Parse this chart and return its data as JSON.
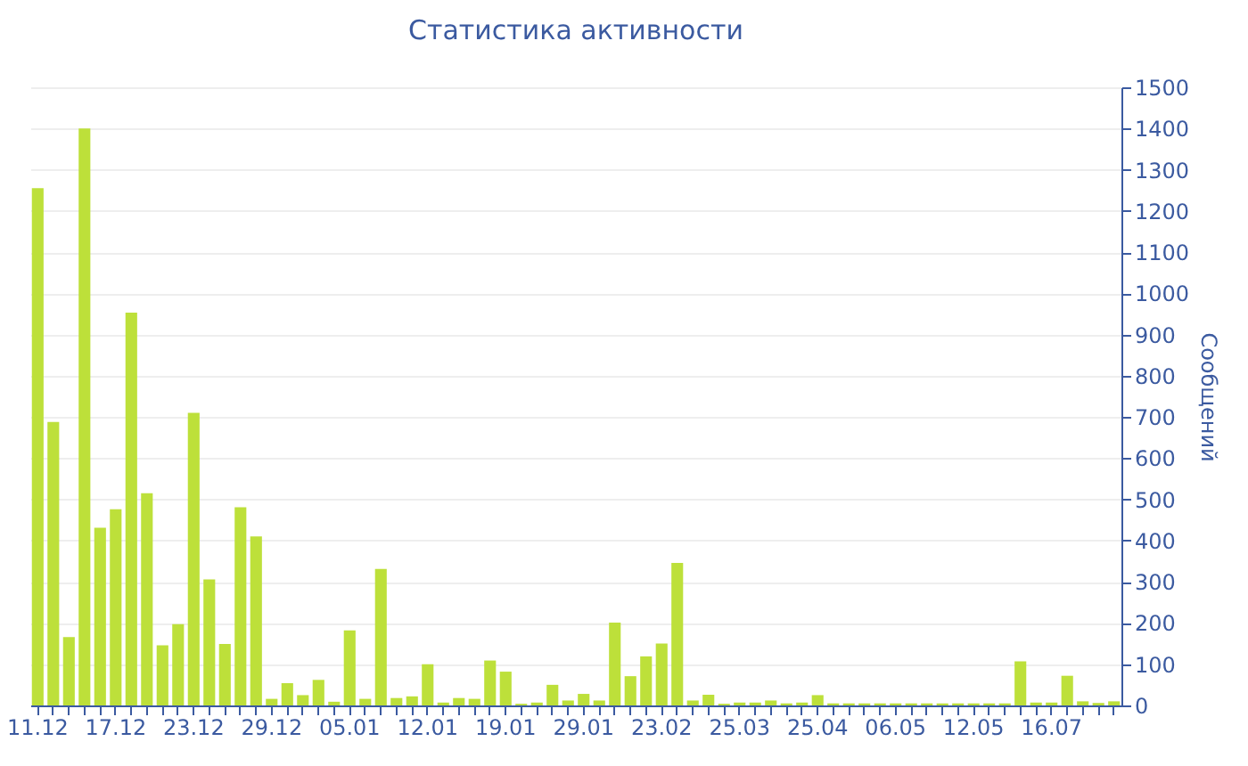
{
  "chart_data": {
    "type": "bar",
    "title": "Статистика активности",
    "ylabel": "Сообщений",
    "categories": [
      "11.12",
      null,
      null,
      null,
      null,
      "17.12",
      null,
      null,
      null,
      null,
      "23.12",
      null,
      null,
      null,
      null,
      "29.12",
      null,
      null,
      null,
      null,
      "05.01",
      null,
      null,
      null,
      null,
      "12.01",
      null,
      null,
      null,
      null,
      "19.01",
      null,
      null,
      null,
      null,
      "29.01",
      null,
      null,
      null,
      null,
      "23.02",
      null,
      null,
      null,
      null,
      "25.03",
      null,
      null,
      null,
      null,
      "25.04",
      null,
      null,
      null,
      null,
      "06.05",
      null,
      null,
      null,
      null,
      "12.05",
      null,
      null,
      null,
      null,
      "16.07",
      null,
      null,
      null,
      null
    ],
    "values": [
      1255,
      688,
      166,
      1400,
      431,
      476,
      953,
      515,
      146,
      197,
      710,
      306,
      149,
      481,
      410,
      16,
      54,
      25,
      62,
      9,
      182,
      16,
      331,
      18,
      22,
      100,
      7,
      18,
      16,
      109,
      82,
      4,
      7,
      50,
      12,
      28,
      12,
      201,
      71,
      119,
      150,
      346,
      12,
      26,
      4,
      7,
      7,
      12,
      5,
      7,
      25,
      5,
      5,
      5,
      5,
      5,
      5,
      5,
      5,
      5,
      5,
      5,
      5,
      107,
      7,
      7,
      72,
      10,
      6,
      10
    ],
    "color": "#bde03a",
    "ylim": [
      0,
      1500
    ],
    "yticks": [
      0,
      100,
      200,
      300,
      400,
      500,
      600,
      700,
      800,
      900,
      1000,
      1100,
      1200,
      1300,
      1400,
      1500
    ],
    "grid": "y"
  }
}
